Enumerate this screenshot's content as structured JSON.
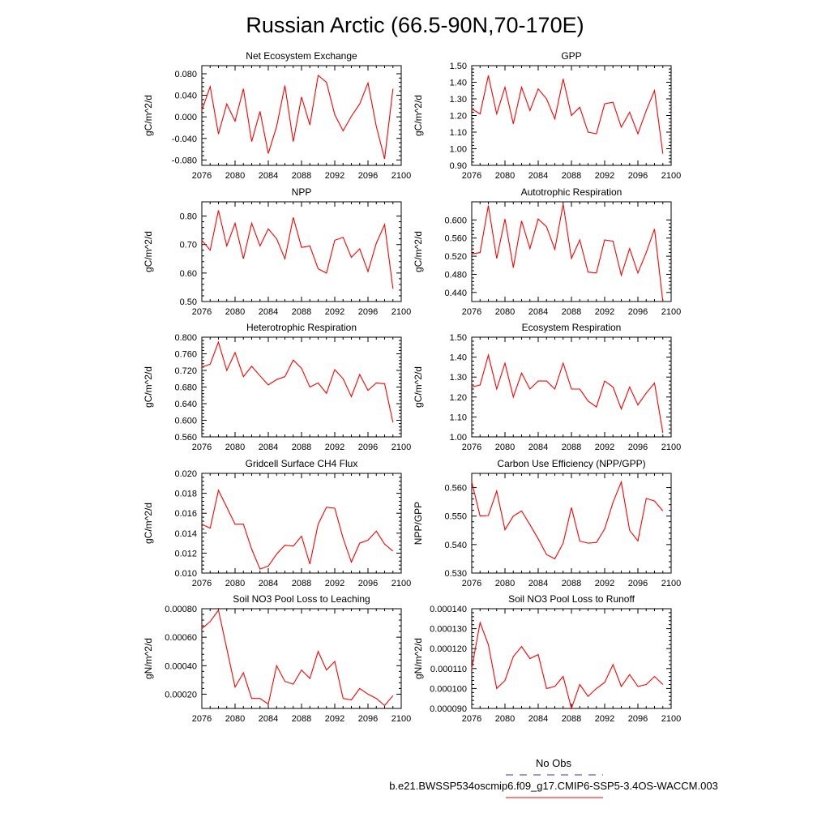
{
  "title": "Russian Arctic (66.5-90N,70-170E)",
  "legend": {
    "obs_label": "No Obs",
    "model_label": "b.e21.BWSSP534oscmip6.f09_g17.CMIP6-SSP5-3.4OS-WACCM.003",
    "obs_color": "#3333cc",
    "model_color": "#ff0000"
  },
  "colors": {
    "line": "#ff0000",
    "axis": "#000000"
  },
  "chart_data": [
    {
      "type": "line",
      "title": "Net Ecosystem Exchange",
      "xlabel": "",
      "ylabel": "gC/m^2/d",
      "xlim": [
        2076,
        2100
      ],
      "ylim": [
        -0.09,
        0.095
      ],
      "xticks": [
        2076,
        2080,
        2084,
        2088,
        2092,
        2096,
        2100
      ],
      "xtick_labels": [
        "2076",
        "2080",
        "2084",
        "2088",
        "2092",
        "2096",
        "2100"
      ],
      "yticks": [
        -0.08,
        -0.04,
        0.0,
        0.04,
        0.08
      ],
      "ytick_labels": [
        "-0.080",
        "-0.040",
        "0.000",
        "0.040",
        "0.080"
      ],
      "x": [
        2076,
        2077,
        2078,
        2079,
        2080,
        2081,
        2082,
        2083,
        2084,
        2085,
        2086,
        2087,
        2088,
        2089,
        2090,
        2091,
        2092,
        2093,
        2094,
        2095,
        2096,
        2097,
        2098,
        2099
      ],
      "values": [
        0.012,
        0.056,
        -0.032,
        0.024,
        -0.008,
        0.052,
        -0.046,
        0.01,
        -0.068,
        -0.018,
        0.058,
        -0.046,
        0.037,
        -0.015,
        0.077,
        0.064,
        0.004,
        -0.026,
        0.001,
        0.024,
        0.063,
        -0.018,
        -0.078,
        0.052
      ]
    },
    {
      "type": "line",
      "title": "GPP",
      "xlabel": "",
      "ylabel": "gC/m^2/d",
      "xlim": [
        2076,
        2100
      ],
      "ylim": [
        0.9,
        1.5
      ],
      "xticks": [
        2076,
        2080,
        2084,
        2088,
        2092,
        2096,
        2100
      ],
      "xtick_labels": [
        "2076",
        "2080",
        "2084",
        "2088",
        "2092",
        "2096",
        "2100"
      ],
      "yticks": [
        0.9,
        1.0,
        1.1,
        1.2,
        1.3,
        1.4,
        1.5
      ],
      "ytick_labels": [
        "0.90",
        "1.00",
        "1.10",
        "1.20",
        "1.30",
        "1.40",
        "1.50"
      ],
      "x": [
        2076,
        2077,
        2078,
        2079,
        2080,
        2081,
        2082,
        2083,
        2084,
        2085,
        2086,
        2087,
        2088,
        2089,
        2090,
        2091,
        2092,
        2093,
        2094,
        2095,
        2096,
        2097,
        2098,
        2099
      ],
      "values": [
        1.24,
        1.21,
        1.44,
        1.21,
        1.37,
        1.15,
        1.37,
        1.23,
        1.36,
        1.3,
        1.18,
        1.42,
        1.2,
        1.25,
        1.1,
        1.09,
        1.27,
        1.28,
        1.13,
        1.22,
        1.09,
        1.23,
        1.35,
        0.97
      ]
    },
    {
      "type": "line",
      "title": "NPP",
      "xlabel": "",
      "ylabel": "gC/m^2/d",
      "xlim": [
        2076,
        2100
      ],
      "ylim": [
        0.5,
        0.85
      ],
      "xticks": [
        2076,
        2080,
        2084,
        2088,
        2092,
        2096,
        2100
      ],
      "xtick_labels": [
        "2076",
        "2080",
        "2084",
        "2088",
        "2092",
        "2096",
        "2100"
      ],
      "yticks": [
        0.5,
        0.6,
        0.7,
        0.8
      ],
      "ytick_labels": [
        "0.50",
        "0.60",
        "0.70",
        "0.80"
      ],
      "x": [
        2076,
        2077,
        2078,
        2079,
        2080,
        2081,
        2082,
        2083,
        2084,
        2085,
        2086,
        2087,
        2088,
        2089,
        2090,
        2091,
        2092,
        2093,
        2094,
        2095,
        2096,
        2097,
        2098,
        2099
      ],
      "values": [
        0.715,
        0.68,
        0.82,
        0.695,
        0.775,
        0.65,
        0.775,
        0.695,
        0.755,
        0.72,
        0.65,
        0.795,
        0.69,
        0.695,
        0.615,
        0.6,
        0.715,
        0.725,
        0.655,
        0.685,
        0.605,
        0.705,
        0.77,
        0.545
      ]
    },
    {
      "type": "line",
      "title": "Autotrophic Respiration",
      "xlabel": "",
      "ylabel": "gC/m^2/d",
      "xlim": [
        2076,
        2100
      ],
      "ylim": [
        0.42,
        0.64
      ],
      "xticks": [
        2076,
        2080,
        2084,
        2088,
        2092,
        2096,
        2100
      ],
      "xtick_labels": [
        "2076",
        "2080",
        "2084",
        "2088",
        "2092",
        "2096",
        "2100"
      ],
      "yticks": [
        0.44,
        0.48,
        0.52,
        0.56,
        0.6
      ],
      "ytick_labels": [
        "0.440",
        "0.480",
        "0.520",
        "0.560",
        "0.600"
      ],
      "x": [
        2076,
        2077,
        2078,
        2079,
        2080,
        2081,
        2082,
        2083,
        2084,
        2085,
        2086,
        2087,
        2088,
        2089,
        2090,
        2091,
        2092,
        2093,
        2094,
        2095,
        2096,
        2097,
        2098,
        2099
      ],
      "values": [
        0.525,
        0.528,
        0.632,
        0.515,
        0.602,
        0.495,
        0.598,
        0.537,
        0.602,
        0.585,
        0.535,
        0.635,
        0.515,
        0.556,
        0.485,
        0.483,
        0.556,
        0.553,
        0.478,
        0.537,
        0.483,
        0.528,
        0.58,
        0.42
      ]
    },
    {
      "type": "line",
      "title": "Heterotrophic Respiration",
      "xlabel": "",
      "ylabel": "gC/m^2/d",
      "xlim": [
        2076,
        2100
      ],
      "ylim": [
        0.56,
        0.8
      ],
      "xticks": [
        2076,
        2080,
        2084,
        2088,
        2092,
        2096,
        2100
      ],
      "xtick_labels": [
        "2076",
        "2080",
        "2084",
        "2088",
        "2092",
        "2096",
        "2100"
      ],
      "yticks": [
        0.56,
        0.6,
        0.64,
        0.68,
        0.72,
        0.76,
        0.8
      ],
      "ytick_labels": [
        "0.560",
        "0.600",
        "0.640",
        "0.680",
        "0.720",
        "0.760",
        "0.800"
      ],
      "x": [
        2076,
        2077,
        2078,
        2079,
        2080,
        2081,
        2082,
        2083,
        2084,
        2085,
        2086,
        2087,
        2088,
        2089,
        2090,
        2091,
        2092,
        2093,
        2094,
        2095,
        2096,
        2097,
        2098,
        2099
      ],
      "values": [
        0.728,
        0.735,
        0.788,
        0.72,
        0.763,
        0.705,
        0.73,
        0.707,
        0.685,
        0.698,
        0.705,
        0.745,
        0.725,
        0.68,
        0.69,
        0.665,
        0.722,
        0.7,
        0.657,
        0.71,
        0.672,
        0.69,
        0.688,
        0.595
      ]
    },
    {
      "type": "line",
      "title": "Ecosystem Respiration",
      "xlabel": "",
      "ylabel": "gC/m^2/d",
      "xlim": [
        2076,
        2100
      ],
      "ylim": [
        1.0,
        1.5
      ],
      "xticks": [
        2076,
        2080,
        2084,
        2088,
        2092,
        2096,
        2100
      ],
      "xtick_labels": [
        "2076",
        "2080",
        "2084",
        "2088",
        "2092",
        "2096",
        "2100"
      ],
      "yticks": [
        1.0,
        1.1,
        1.2,
        1.3,
        1.4,
        1.5
      ],
      "ytick_labels": [
        "1.00",
        "1.10",
        "1.20",
        "1.30",
        "1.40",
        "1.50"
      ],
      "x": [
        2076,
        2077,
        2078,
        2079,
        2080,
        2081,
        2082,
        2083,
        2084,
        2085,
        2086,
        2087,
        2088,
        2089,
        2090,
        2091,
        2092,
        2093,
        2094,
        2095,
        2096,
        2097,
        2098,
        2099
      ],
      "values": [
        1.25,
        1.26,
        1.41,
        1.24,
        1.37,
        1.2,
        1.32,
        1.24,
        1.28,
        1.28,
        1.24,
        1.37,
        1.24,
        1.24,
        1.18,
        1.15,
        1.28,
        1.25,
        1.14,
        1.25,
        1.16,
        1.22,
        1.27,
        1.02
      ]
    },
    {
      "type": "line",
      "title": "Gridcell Surface CH4 Flux",
      "xlabel": "",
      "ylabel": "gC/m^2/d",
      "xlim": [
        2076,
        2100
      ],
      "ylim": [
        0.01,
        0.02
      ],
      "xticks": [
        2076,
        2080,
        2084,
        2088,
        2092,
        2096,
        2100
      ],
      "xtick_labels": [
        "2076",
        "2080",
        "2084",
        "2088",
        "2092",
        "2096",
        "2100"
      ],
      "yticks": [
        0.01,
        0.012,
        0.014,
        0.016,
        0.018,
        0.02
      ],
      "ytick_labels": [
        "0.010",
        "0.012",
        "0.014",
        "0.016",
        "0.018",
        "0.020"
      ],
      "x": [
        2076,
        2077,
        2078,
        2079,
        2080,
        2081,
        2082,
        2083,
        2084,
        2085,
        2086,
        2087,
        2088,
        2089,
        2090,
        2091,
        2092,
        2093,
        2094,
        2095,
        2096,
        2097,
        2098,
        2099
      ],
      "values": [
        0.0149,
        0.0145,
        0.0183,
        0.0166,
        0.0149,
        0.0149,
        0.0124,
        0.0104,
        0.0107,
        0.0119,
        0.0128,
        0.0127,
        0.0137,
        0.0109,
        0.0149,
        0.0166,
        0.0165,
        0.0135,
        0.0111,
        0.013,
        0.0133,
        0.0142,
        0.0129,
        0.0122
      ]
    },
    {
      "type": "line",
      "title": "Carbon Use Efficiency (NPP/GPP)",
      "xlabel": "",
      "ylabel": "NPP/GPP",
      "xlim": [
        2076,
        2100
      ],
      "ylim": [
        0.53,
        0.565
      ],
      "xticks": [
        2076,
        2080,
        2084,
        2088,
        2092,
        2096,
        2100
      ],
      "xtick_labels": [
        "2076",
        "2080",
        "2084",
        "2088",
        "2092",
        "2096",
        "2100"
      ],
      "yticks": [
        0.53,
        0.54,
        0.55,
        0.56
      ],
      "ytick_labels": [
        "0.530",
        "0.540",
        "0.550",
        "0.560"
      ],
      "x": [
        2076,
        2077,
        2078,
        2079,
        2080,
        2081,
        2082,
        2083,
        2084,
        2085,
        2086,
        2087,
        2088,
        2089,
        2090,
        2091,
        2092,
        2093,
        2094,
        2095,
        2096,
        2097,
        2098,
        2099
      ],
      "values": [
        0.562,
        0.55,
        0.5502,
        0.5588,
        0.5452,
        0.55,
        0.5518,
        0.547,
        0.542,
        0.5365,
        0.535,
        0.5405,
        0.553,
        0.5412,
        0.5405,
        0.5407,
        0.5455,
        0.5548,
        0.562,
        0.545,
        0.5413,
        0.5562,
        0.5553,
        0.5518
      ]
    },
    {
      "type": "line",
      "title": "Soil NO3 Pool Loss to Leaching",
      "xlabel": "",
      "ylabel": "gN/m^2/d",
      "xlim": [
        2076,
        2100
      ],
      "ylim": [
        0.0001,
        0.0008
      ],
      "xticks": [
        2076,
        2080,
        2084,
        2088,
        2092,
        2096,
        2100
      ],
      "xtick_labels": [
        "2076",
        "2080",
        "2084",
        "2088",
        "2092",
        "2096",
        "2100"
      ],
      "yticks": [
        0.0002,
        0.0004,
        0.0006,
        0.0008
      ],
      "ytick_labels": [
        "0.00020",
        "0.00040",
        "0.00060",
        "0.00080"
      ],
      "x": [
        2076,
        2077,
        2078,
        2079,
        2080,
        2081,
        2082,
        2083,
        2084,
        2085,
        2086,
        2087,
        2088,
        2089,
        2090,
        2091,
        2092,
        2093,
        2094,
        2095,
        2096,
        2097,
        2098,
        2099
      ],
      "values": [
        0.00066,
        0.00071,
        0.00079,
        0.00052,
        0.00025,
        0.00035,
        0.00017,
        0.00017,
        0.00013,
        0.0004,
        0.00029,
        0.00027,
        0.00037,
        0.00031,
        0.0005,
        0.00037,
        0.00043,
        0.00017,
        0.00016,
        0.00024,
        0.0002,
        0.00017,
        0.00012,
        0.00019
      ]
    },
    {
      "type": "line",
      "title": "Soil NO3 Pool Loss to Runoff",
      "xlabel": "",
      "ylabel": "gN/m^2/d",
      "xlim": [
        2076,
        2100
      ],
      "ylim": [
        9e-05,
        0.00014
      ],
      "xticks": [
        2076,
        2080,
        2084,
        2088,
        2092,
        2096,
        2100
      ],
      "xtick_labels": [
        "2076",
        "2080",
        "2084",
        "2088",
        "2092",
        "2096",
        "2100"
      ],
      "yticks": [
        9e-05,
        0.0001,
        0.00011,
        0.00012,
        0.00013,
        0.00014
      ],
      "ytick_labels": [
        "0.000090",
        "0.000100",
        "0.000110",
        "0.000120",
        "0.000130",
        "0.000140"
      ],
      "x": [
        2076,
        2077,
        2078,
        2079,
        2080,
        2081,
        2082,
        2083,
        2084,
        2085,
        2086,
        2087,
        2088,
        2089,
        2090,
        2091,
        2092,
        2093,
        2094,
        2095,
        2096,
        2097,
        2098,
        2099
      ],
      "values": [
        0.00011,
        0.000133,
        0.000122,
        0.0001,
        0.000104,
        0.000116,
        0.000121,
        0.000115,
        0.000117,
        0.0001,
        0.000101,
        0.000106,
        9e-05,
        0.000102,
        9.6e-05,
        0.0001,
        0.000103,
        0.000112,
        0.000101,
        0.000107,
        0.000101,
        0.000102,
        0.000106,
        0.000102
      ]
    }
  ]
}
